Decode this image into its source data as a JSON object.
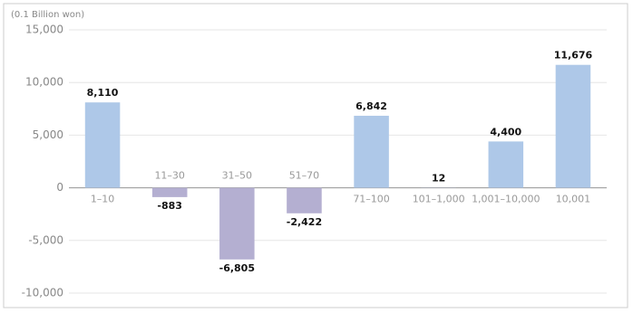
{
  "chart_data": {
    "type": "bar",
    "y_label": "(0.1 Billion won)",
    "categories": [
      "1–10",
      "11–30",
      "31–50",
      "51–70",
      "71–100",
      "101–1,000",
      "1,001–10,000",
      "10,001"
    ],
    "values": [
      8110,
      -883,
      -6805,
      -2422,
      6842,
      12,
      4400,
      11676
    ],
    "value_labels": [
      "8,110",
      "-883",
      "-6,805",
      "-2,422",
      "6,842",
      "12",
      "4,400",
      "11,676"
    ],
    "color_positive": "#aec8e8",
    "color_negative": "#b4afd1",
    "ylim": [
      -10000,
      15000
    ],
    "yticks": [
      {
        "value": 15000,
        "label": "15,000"
      },
      {
        "value": 10000,
        "label": "10,000"
      },
      {
        "value": 5000,
        "label": "5,000"
      },
      0,
      {
        "value": -5000,
        "label": "-5,000"
      },
      {
        "value": -10000,
        "label": "-10,000"
      }
    ],
    "grid": true
  }
}
